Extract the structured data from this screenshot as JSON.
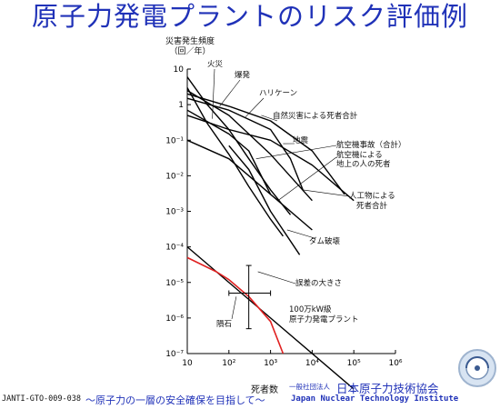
{
  "slide": {
    "title": "原子力発電プラントのリスク評価例",
    "doc_id": "JANTI-GTO-009-038",
    "slogan": "〜原子力の一層の安全確保を目指して〜",
    "org_type": "一般社団法人",
    "org_name": "日本原子力技術協会",
    "org_name_en": "Japan Nuclear Technology Institute"
  },
  "chart_data": {
    "type": "line",
    "title": "",
    "xlabel": "死者数",
    "ylabel": [
      "災害発生頻度",
      "（回／年）"
    ],
    "x_scale": "log",
    "y_scale": "log",
    "xlim": [
      10,
      1000000
    ],
    "ylim": [
      1e-07,
      10
    ],
    "x_ticks": [
      "10",
      "10²",
      "10³",
      "10⁴",
      "10⁵",
      "10⁶"
    ],
    "y_ticks": [
      "10",
      "1",
      "10⁻¹",
      "10⁻²",
      "10⁻³",
      "10⁻⁴",
      "10⁻⁵",
      "10⁻⁶",
      "10⁻⁷"
    ],
    "grid": false,
    "series": [
      {
        "name": "火災",
        "color": "#000000",
        "points": [
          [
            10,
            3
          ],
          [
            30,
            0.3
          ],
          [
            100,
            0.04
          ],
          [
            300,
            0.005
          ],
          [
            1000,
            0.0006
          ],
          [
            2000,
            0.0002
          ]
        ]
      },
      {
        "name": "爆発",
        "color": "#000000",
        "points": [
          [
            10,
            6
          ],
          [
            30,
            1
          ],
          [
            100,
            0.2
          ],
          [
            300,
            0.03
          ],
          [
            1000,
            0.004
          ],
          [
            3000,
            0.0008
          ]
        ]
      },
      {
        "name": "ハリケーン",
        "color": "#000000",
        "points": [
          [
            10,
            1.5
          ],
          [
            100,
            0.7
          ],
          [
            1000,
            0.2
          ],
          [
            3000,
            0.03
          ],
          [
            6000,
            0.004
          ]
        ]
      },
      {
        "name": "自然災害による死者合計",
        "color": "#000000",
        "points": [
          [
            10,
            2
          ],
          [
            100,
            0.9
          ],
          [
            1000,
            0.35
          ],
          [
            10000,
            0.05
          ],
          [
            60000,
            0.003
          ]
        ]
      },
      {
        "name": "地震",
        "color": "#000000",
        "points": [
          [
            10,
            0.5
          ],
          [
            100,
            0.2
          ],
          [
            1000,
            0.1
          ],
          [
            10000,
            0.02
          ],
          [
            100000,
            0.002
          ]
        ]
      },
      {
        "name": "航空機事故（合計）",
        "color": "#000000",
        "points": [
          [
            10,
            0.7
          ],
          [
            100,
            0.15
          ],
          [
            300,
            0.05
          ],
          [
            1000,
            0.003
          ]
        ]
      },
      {
        "name": "航空機による地上の人の死者",
        "color": "#000000",
        "points": [
          [
            10,
            0.1
          ],
          [
            100,
            0.03
          ],
          [
            1000,
            0.003
          ],
          [
            10000,
            0.0003
          ]
        ]
      },
      {
        "name": "人工物による死者合計",
        "color": "#000000",
        "points": [
          [
            10,
            2.5
          ],
          [
            100,
            0.5
          ],
          [
            1000,
            0.04
          ],
          [
            10000,
            0.002
          ]
        ]
      },
      {
        "name": "ダム破壊",
        "color": "#000000",
        "points": [
          [
            100,
            0.07
          ],
          [
            300,
            0.015
          ],
          [
            1000,
            0.001
          ],
          [
            5000,
            6e-05
          ]
        ]
      },
      {
        "name": "隕石",
        "color": "#000000",
        "points": [
          [
            10,
            0.0001
          ],
          [
            1000,
            1e-06
          ],
          [
            100000,
            1e-08
          ]
        ]
      },
      {
        "name": "100万kW級原子力発電プラント",
        "color": "#e02020",
        "points": [
          [
            10,
            5e-05
          ],
          [
            50,
            2e-05
          ],
          [
            100,
            1.2e-05
          ],
          [
            300,
            4e-06
          ],
          [
            1000,
            8e-07
          ],
          [
            2000,
            1e-07
          ]
        ]
      }
    ],
    "error_bar": {
      "label": "誤差の大きさ",
      "x": 300,
      "y": 5e-06,
      "x_range": [
        100,
        1000
      ],
      "y_range": [
        5e-07,
        3e-05
      ]
    },
    "annotations": {
      "fire": "火災",
      "explosion": "爆発",
      "hurricane": "ハリケーン",
      "natural_total": "自然災害による死者合計",
      "earthquake": "地震",
      "aircraft_total": "航空機事故（合計）",
      "aircraft_ground_1": "航空機による",
      "aircraft_ground_2": "地上の人の死者",
      "manmade_1": "人工物による",
      "manmade_2": "死者合計",
      "dam": "ダム破壊",
      "error": "誤差の大きさ",
      "meteor": "隕石",
      "npp_1": "100万kW級",
      "npp_2": "原子力発電プラント"
    }
  }
}
